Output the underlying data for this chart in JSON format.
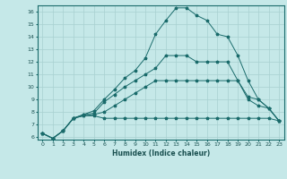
{
  "xlabel": "Humidex (Indice chaleur)",
  "ylabel": "",
  "xlim": [
    -0.5,
    23.5
  ],
  "ylim": [
    5.8,
    16.5
  ],
  "bg_color": "#c5e8e8",
  "grid_color": "#a8d0d0",
  "line_color": "#1a6b6b",
  "series": [
    {
      "x": [
        0,
        1,
        2,
        3,
        4,
        5,
        6,
        7,
        8,
        9,
        10,
        11,
        12,
        13,
        14,
        15,
        16,
        17,
        18,
        19,
        20,
        21,
        22,
        23
      ],
      "y": [
        6.3,
        5.9,
        6.5,
        7.5,
        7.7,
        7.7,
        7.5,
        7.5,
        7.5,
        7.5,
        7.5,
        7.5,
        7.5,
        7.5,
        7.5,
        7.5,
        7.5,
        7.5,
        7.5,
        7.5,
        7.5,
        7.5,
        7.5,
        7.3
      ]
    },
    {
      "x": [
        0,
        1,
        2,
        3,
        4,
        5,
        6,
        7,
        8,
        9,
        10,
        11,
        12,
        13,
        14,
        15,
        16,
        17,
        18,
        19,
        20,
        21,
        22,
        23
      ],
      "y": [
        6.3,
        5.9,
        6.5,
        7.5,
        7.7,
        7.8,
        8.0,
        8.5,
        9.0,
        9.5,
        10.0,
        10.5,
        10.5,
        10.5,
        10.5,
        10.5,
        10.5,
        10.5,
        10.5,
        10.5,
        9.0,
        8.5,
        8.3,
        7.3
      ]
    },
    {
      "x": [
        0,
        1,
        2,
        3,
        4,
        5,
        6,
        7,
        8,
        9,
        10,
        11,
        12,
        13,
        14,
        15,
        16,
        17,
        18,
        19,
        20,
        21,
        22,
        23
      ],
      "y": [
        6.3,
        5.9,
        6.5,
        7.5,
        7.8,
        7.9,
        8.8,
        9.4,
        10.0,
        10.5,
        11.0,
        11.5,
        12.5,
        12.5,
        12.5,
        12.0,
        12.0,
        12.0,
        12.0,
        10.5,
        9.2,
        9.0,
        8.3,
        7.3
      ]
    },
    {
      "x": [
        0,
        1,
        2,
        3,
        4,
        5,
        6,
        7,
        8,
        9,
        10,
        11,
        12,
        13,
        14,
        15,
        16,
        17,
        18,
        19,
        20,
        21,
        22,
        23
      ],
      "y": [
        6.3,
        5.9,
        6.5,
        7.5,
        7.8,
        8.1,
        9.0,
        9.8,
        10.7,
        11.3,
        12.3,
        14.2,
        15.3,
        16.3,
        16.3,
        15.7,
        15.3,
        14.2,
        14.0,
        12.5,
        10.5,
        9.0,
        8.3,
        7.3
      ]
    }
  ]
}
